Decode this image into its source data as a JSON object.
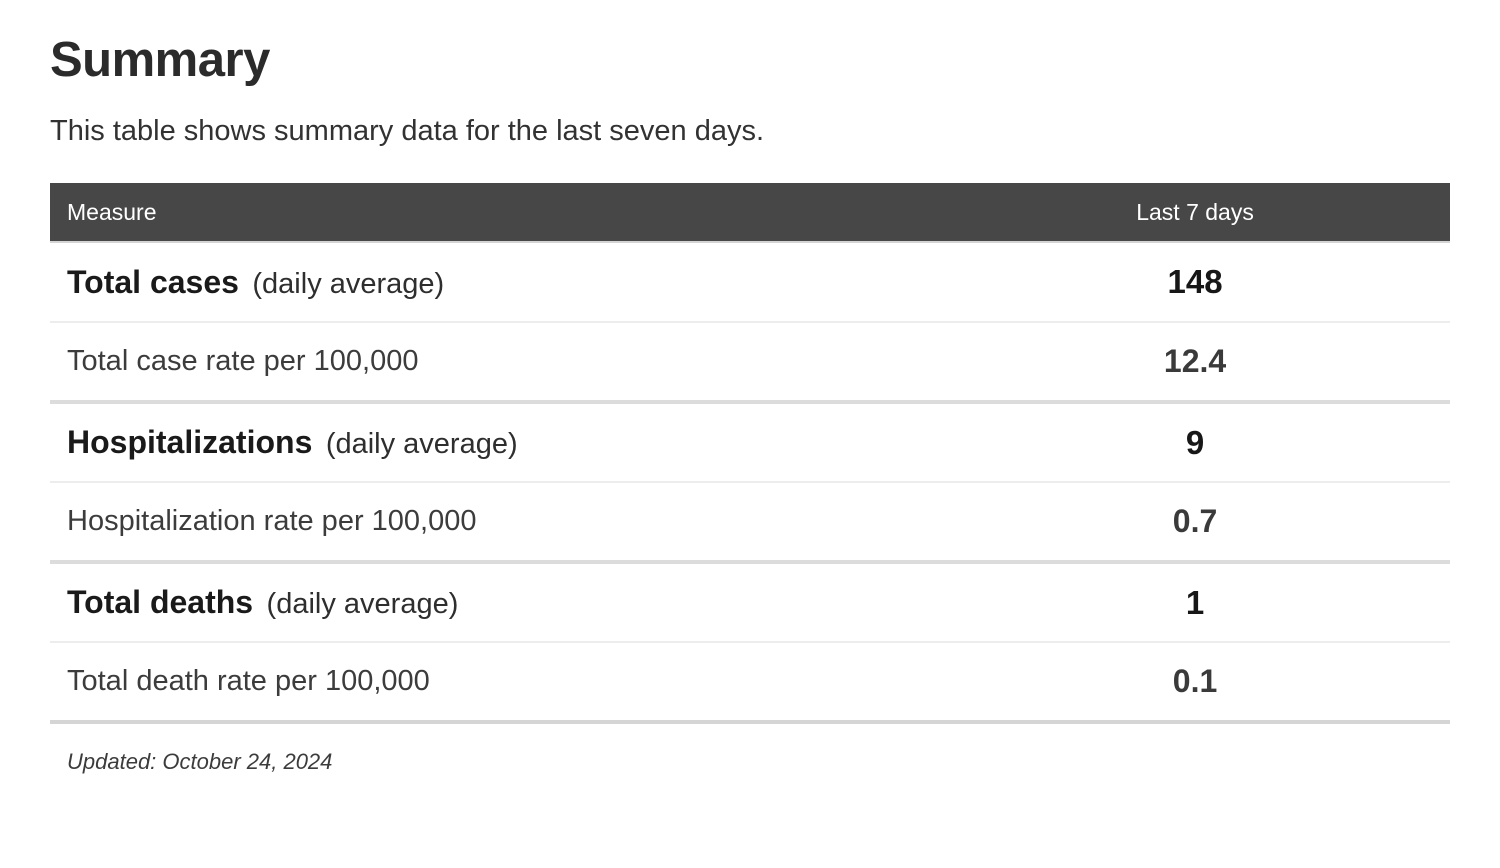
{
  "page": {
    "title": "Summary",
    "subtitle": "This table shows summary data for the last seven days.",
    "updated": "Updated: October 24, 2024"
  },
  "colors": {
    "header_bg": "#474747",
    "header_text": "#ffffff",
    "group_text": "#1a1a1a",
    "sub_text": "#3c3c3c",
    "divider_thin": "#ededed",
    "divider_thick": "#dcdcdc"
  },
  "table": {
    "columns": [
      "Measure",
      "Last 7 days"
    ],
    "rows": [
      {
        "type": "group",
        "label": "Total cases",
        "note": "(daily average)",
        "value": "148"
      },
      {
        "type": "sub",
        "label": "Total case rate per 100,000",
        "note": "",
        "value": "12.4"
      },
      {
        "type": "group",
        "label": "Hospitalizations",
        "note": "(daily average)",
        "value": "9"
      },
      {
        "type": "sub",
        "label": "Hospitalization rate per 100,000",
        "note": "",
        "value": "0.7"
      },
      {
        "type": "group",
        "label": "Total deaths",
        "note": "(daily average)",
        "value": "1"
      },
      {
        "type": "sub",
        "label": "Total death rate per 100,000",
        "note": "",
        "value": "0.1"
      }
    ]
  },
  "chart_data": {
    "type": "table",
    "title": "Summary",
    "subtitle": "This table shows summary data for the last seven days.",
    "columns": [
      "Measure",
      "Last 7 days"
    ],
    "rows": [
      [
        "Total cases (daily average)",
        148
      ],
      [
        "Total case rate per 100,000",
        12.4
      ],
      [
        "Hospitalizations (daily average)",
        9
      ],
      [
        "Hospitalization rate per 100,000",
        0.7
      ],
      [
        "Total deaths (daily average)",
        1
      ],
      [
        "Total death rate per 100,000",
        0.1
      ]
    ],
    "footnote": "Updated: October 24, 2024"
  }
}
